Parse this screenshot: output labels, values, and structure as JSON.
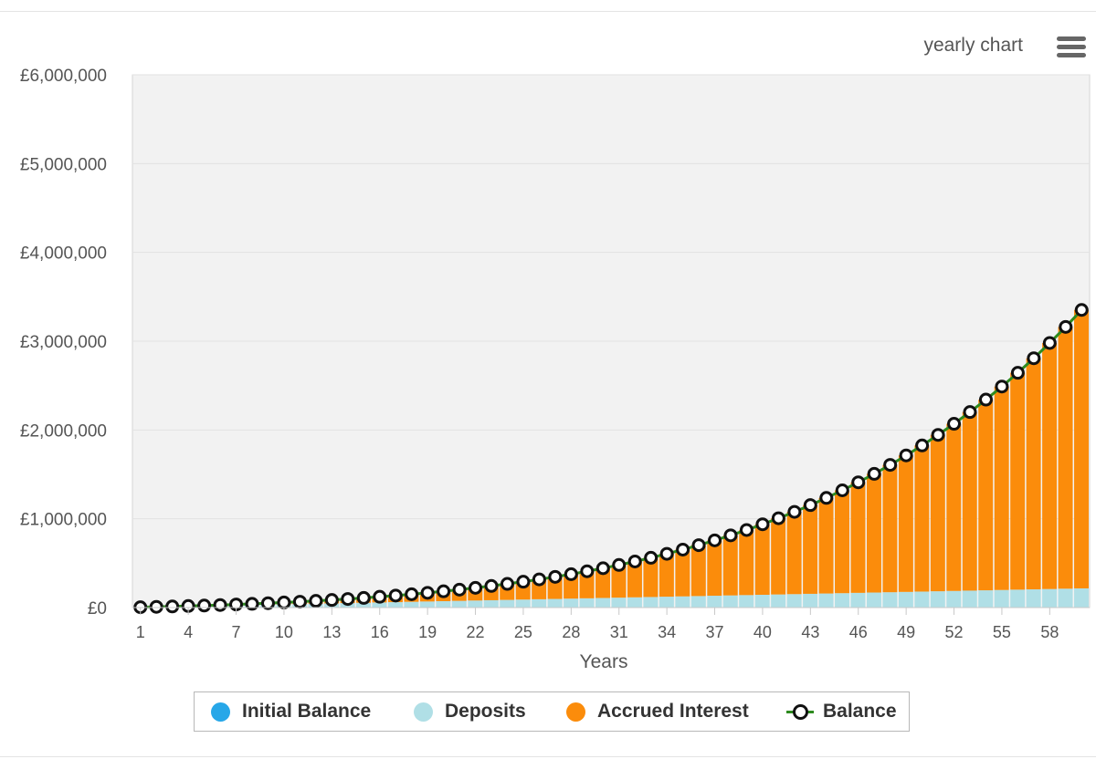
{
  "header": {
    "chart_mode_label": "yearly chart",
    "menu_icon": "hamburger-menu-icon"
  },
  "colors": {
    "initial_balance": "#27a7e8",
    "deposits": "#b0dfe6",
    "accrued_interest": "#fb8c0b",
    "balance_line": "#2e8b1f",
    "balance_marker_stroke": "#111111",
    "plot_background": "#f2f2f2"
  },
  "legend": [
    {
      "label": "Initial Balance",
      "color": "#27a7e8"
    },
    {
      "label": "Deposits",
      "color": "#b0dfe6"
    },
    {
      "label": "Accrued Interest",
      "color": "#fb8c0b"
    },
    {
      "label": "Balance",
      "color": "#2e8b1f"
    }
  ],
  "chart_data": {
    "type": "bar",
    "stacked": true,
    "xlabel": "Years",
    "ylabel": "",
    "ylim": [
      0,
      6000000
    ],
    "y_ticks": [
      0,
      1000000,
      2000000,
      3000000,
      4000000,
      5000000,
      6000000
    ],
    "y_tick_labels": [
      "£0",
      "£1,000,000",
      "£2,000,000",
      "£3,000,000",
      "£4,000,000",
      "£5,000,000",
      "£6,000,000"
    ],
    "x_tick_labels": [
      "1",
      "4",
      "7",
      "10",
      "13",
      "16",
      "19",
      "22",
      "25",
      "28",
      "31",
      "34",
      "37",
      "40",
      "43",
      "46",
      "49",
      "52",
      "55",
      "58"
    ],
    "grid": "horizontal",
    "legend_position": "bottom-center",
    "categories": [
      1,
      2,
      3,
      4,
      5,
      6,
      7,
      8,
      9,
      10,
      11,
      12,
      13,
      14,
      15,
      16,
      17,
      18,
      19,
      20,
      21,
      22,
      23,
      24,
      25,
      26,
      27,
      28,
      29,
      30,
      31,
      32,
      33,
      34,
      35,
      36,
      37,
      38,
      39,
      40,
      41,
      42,
      43,
      44,
      45,
      46,
      47,
      48,
      49,
      50,
      51,
      52,
      53,
      54,
      55,
      56,
      57,
      58,
      59,
      60
    ],
    "series": [
      {
        "name": "Initial Balance",
        "kind": "bar",
        "values": [
          0,
          0,
          0,
          0,
          0,
          0,
          0,
          0,
          0,
          0,
          0,
          0,
          0,
          0,
          0,
          0,
          0,
          0,
          0,
          0,
          0,
          0,
          0,
          0,
          0,
          0,
          0,
          0,
          0,
          0,
          0,
          0,
          0,
          0,
          0,
          0,
          0,
          0,
          0,
          0,
          0,
          0,
          0,
          0,
          0,
          0,
          0,
          0,
          0,
          0,
          0,
          0,
          0,
          0,
          0,
          0,
          0,
          0,
          0,
          0
        ]
      },
      {
        "name": "Deposits",
        "kind": "bar",
        "values": [
          3600,
          7200,
          10800,
          14400,
          18000,
          21600,
          25200,
          28800,
          32400,
          36000,
          39600,
          43200,
          46800,
          50400,
          54000,
          57600,
          61200,
          64800,
          68400,
          72000,
          75600,
          79200,
          82800,
          86400,
          90000,
          93600,
          97200,
          100800,
          104400,
          108000,
          111600,
          115200,
          118800,
          122400,
          126000,
          129600,
          133200,
          136800,
          140400,
          144000,
          147600,
          151200,
          154800,
          158400,
          162000,
          165600,
          169200,
          172800,
          176400,
          180000,
          183600,
          187200,
          190800,
          194400,
          198000,
          201600,
          205200,
          208800,
          212400,
          216000
        ]
      },
      {
        "name": "Accrued Interest",
        "kind": "bar",
        "values": [
          252,
          779,
          1695,
          3028,
          4794,
          7025,
          9756,
          13016,
          16853,
          21302,
          26416,
          32243,
          38835,
          46260,
          54558,
          63800,
          74048,
          85372,
          97837,
          111537,
          126538,
          142923,
          160777,
          180187,
          201254,
          224069,
          248750,
          275381,
          304082,
          334964,
          368162,
          403794,
          442008,
          482927,
          526700,
          573488,
          623434,
          676710,
          733493,
          793953,
          858290,
          926669,
          999317,
          1076410,
          1158200,
          1244880,
          1336730,
          1433990,
          1536940,
          1645870,
          1761070,
          1882850,
          2011540,
          2147470,
          2291000,
          2442480,
          2602290,
          2770850,
          2948560,
          3135850
        ]
      },
      {
        "name": "Balance",
        "kind": "line",
        "values": [
          3852,
          7979,
          12495,
          17428,
          22794,
          28625,
          34956,
          41816,
          49253,
          57302,
          66016,
          75443,
          85635,
          96660,
          108558,
          121400,
          135248,
          150172,
          166237,
          183537,
          202138,
          222123,
          243577,
          266587,
          291254,
          317669,
          345950,
          376181,
          408482,
          442964,
          479762,
          519000,
          560808,
          605327,
          652700,
          703088,
          756634,
          813510,
          873893,
          937953,
          1005890,
          1077870,
          1154120,
          1234810,
          1320200,
          1410480,
          1505930,
          1606790,
          1713340,
          1825870,
          1944670,
          2070050,
          2202330,
          2341870,
          2489000,
          2644080,
          2807490,
          2979650,
          3160960,
          3351850
        ]
      }
    ]
  }
}
